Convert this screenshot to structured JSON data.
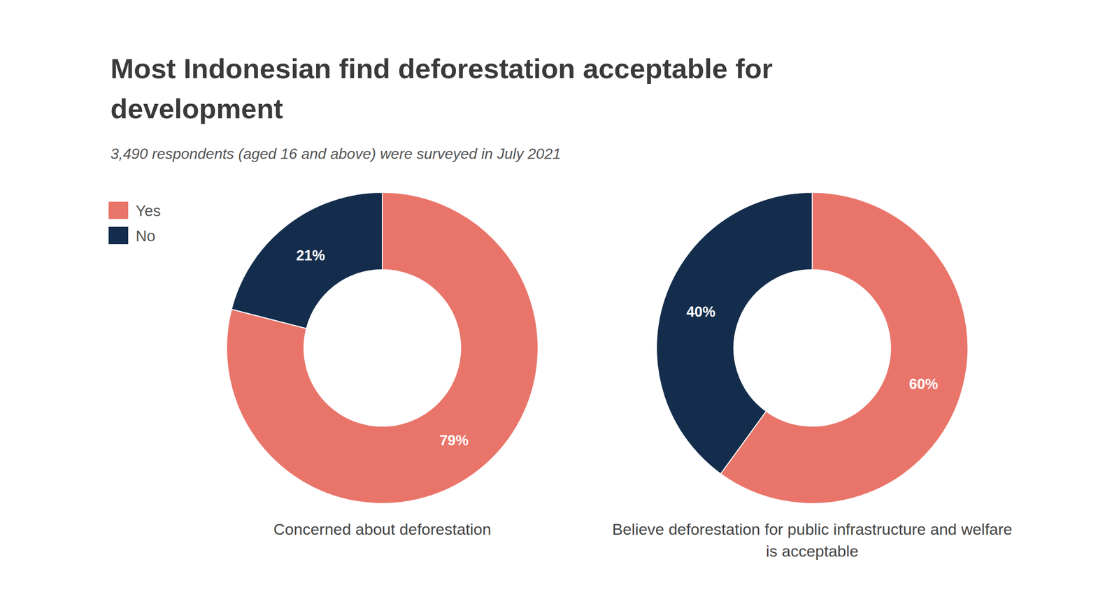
{
  "title": "Most Indonesian find deforestation acceptable for development",
  "subtitle": "3,490 respondents (aged 16 and above) were surveyed in July 2021",
  "chart_data": [
    {
      "type": "donut",
      "title": "Concerned about deforestation",
      "categories": [
        "Yes",
        "No"
      ],
      "values": [
        79,
        21
      ],
      "value_labels": [
        "79%",
        "21%"
      ],
      "colors": [
        "#e9756a",
        "#142d4c"
      ],
      "data_labels": true,
      "legend": "top-left"
    },
    {
      "type": "donut",
      "title": "Believe deforestation for public infrastructure and welfare is acceptable",
      "categories": [
        "Yes",
        "No"
      ],
      "values": [
        60,
        40
      ],
      "value_labels": [
        "60%",
        "40%"
      ],
      "colors": [
        "#e9756a",
        "#142d4c"
      ],
      "data_labels": true
    }
  ]
}
